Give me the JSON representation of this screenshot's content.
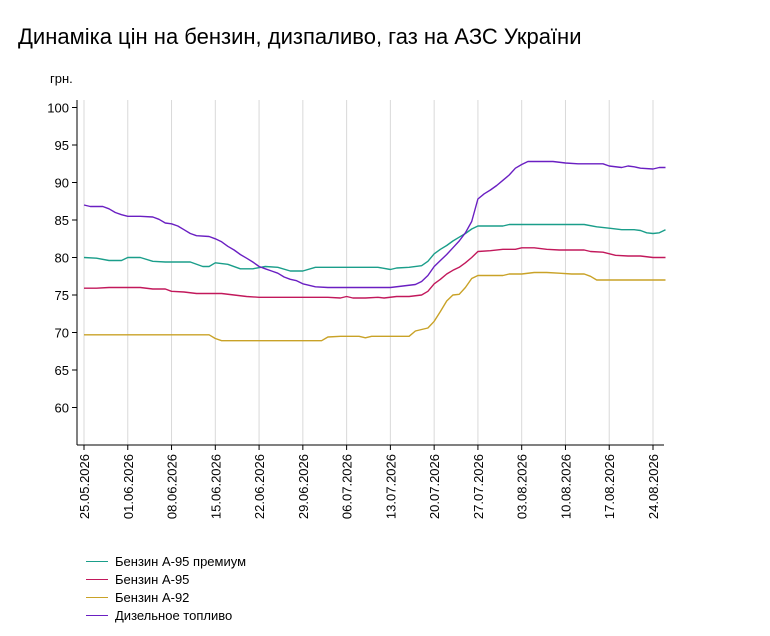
{
  "title": "Динаміка цін на бензин, дизпаливо, газ на АЗС України",
  "chart_data": {
    "type": "line",
    "ylabel": "грн.",
    "ylim": [
      55,
      100
    ],
    "yticks": [
      60,
      65,
      70,
      75,
      80,
      85,
      90,
      95,
      100
    ],
    "x_start": "25.05.2026",
    "x_end": "26.08.2026",
    "x_tick_labels": [
      "25.05.2026",
      "01.06.2026",
      "08.06.2026",
      "15.06.2026",
      "22.06.2026",
      "29.06.2026",
      "06.07.2026",
      "13.07.2026",
      "20.07.2026",
      "27.07.2026",
      "03.08.2026",
      "10.08.2026",
      "17.08.2026",
      "24.08.2026"
    ],
    "grid": {
      "vertical": true,
      "horizontal": false
    },
    "legend_position": "bottom-left",
    "series": [
      {
        "name": "Бензин А-95 премиум",
        "color": "#1a9e8a",
        "points": [
          [
            "25.05.2026",
            80.0
          ],
          [
            "27.05.2026",
            79.9
          ],
          [
            "29.05.2026",
            79.6
          ],
          [
            "31.05.2026",
            79.6
          ],
          [
            "01.06.2026",
            80.0
          ],
          [
            "03.06.2026",
            80.0
          ],
          [
            "05.06.2026",
            79.5
          ],
          [
            "07.06.2026",
            79.4
          ],
          [
            "09.06.2026",
            79.4
          ],
          [
            "11.06.2026",
            79.4
          ],
          [
            "13.06.2026",
            78.8
          ],
          [
            "14.06.2026",
            78.8
          ],
          [
            "15.06.2026",
            79.3
          ],
          [
            "17.06.2026",
            79.1
          ],
          [
            "19.06.2026",
            78.5
          ],
          [
            "21.06.2026",
            78.5
          ],
          [
            "23.06.2026",
            78.8
          ],
          [
            "25.06.2026",
            78.7
          ],
          [
            "27.06.2026",
            78.2
          ],
          [
            "29.06.2026",
            78.2
          ],
          [
            "01.07.2026",
            78.7
          ],
          [
            "03.07.2026",
            78.7
          ],
          [
            "05.07.2026",
            78.7
          ],
          [
            "07.07.2026",
            78.7
          ],
          [
            "09.07.2026",
            78.7
          ],
          [
            "11.07.2026",
            78.7
          ],
          [
            "13.07.2026",
            78.4
          ],
          [
            "14.07.2026",
            78.6
          ],
          [
            "16.07.2026",
            78.7
          ],
          [
            "18.07.2026",
            78.9
          ],
          [
            "19.07.2026",
            79.5
          ],
          [
            "20.07.2026",
            80.5
          ],
          [
            "21.07.2026",
            81.1
          ],
          [
            "22.07.2026",
            81.6
          ],
          [
            "23.07.2026",
            82.2
          ],
          [
            "24.07.2026",
            82.7
          ],
          [
            "25.07.2026",
            83.2
          ],
          [
            "26.07.2026",
            83.8
          ],
          [
            "27.07.2026",
            84.2
          ],
          [
            "29.07.2026",
            84.2
          ],
          [
            "31.07.2026",
            84.2
          ],
          [
            "01.08.2026",
            84.4
          ],
          [
            "03.08.2026",
            84.4
          ],
          [
            "05.08.2026",
            84.4
          ],
          [
            "07.08.2026",
            84.4
          ],
          [
            "09.08.2026",
            84.4
          ],
          [
            "11.08.2026",
            84.4
          ],
          [
            "13.08.2026",
            84.4
          ],
          [
            "15.08.2026",
            84.1
          ],
          [
            "17.08.2026",
            83.9
          ],
          [
            "19.08.2026",
            83.7
          ],
          [
            "21.08.2026",
            83.7
          ],
          [
            "22.08.2026",
            83.6
          ],
          [
            "23.08.2026",
            83.3
          ],
          [
            "24.08.2026",
            83.2
          ],
          [
            "25.08.2026",
            83.3
          ],
          [
            "26.08.2026",
            83.7
          ]
        ]
      },
      {
        "name": "Бензин А-95",
        "color": "#c2185b",
        "points": [
          [
            "25.05.2026",
            75.9
          ],
          [
            "27.05.2026",
            75.9
          ],
          [
            "29.05.2026",
            76.0
          ],
          [
            "31.05.2026",
            76.0
          ],
          [
            "03.06.2026",
            76.0
          ],
          [
            "05.06.2026",
            75.8
          ],
          [
            "07.06.2026",
            75.8
          ],
          [
            "08.06.2026",
            75.5
          ],
          [
            "10.06.2026",
            75.4
          ],
          [
            "12.06.2026",
            75.2
          ],
          [
            "14.06.2026",
            75.2
          ],
          [
            "16.06.2026",
            75.2
          ],
          [
            "18.06.2026",
            75.0
          ],
          [
            "20.06.2026",
            74.8
          ],
          [
            "22.06.2026",
            74.7
          ],
          [
            "24.06.2026",
            74.7
          ],
          [
            "27.06.2026",
            74.7
          ],
          [
            "30.06.2026",
            74.7
          ],
          [
            "03.07.2026",
            74.7
          ],
          [
            "05.07.2026",
            74.6
          ],
          [
            "06.07.2026",
            74.8
          ],
          [
            "07.07.2026",
            74.6
          ],
          [
            "09.07.2026",
            74.6
          ],
          [
            "11.07.2026",
            74.7
          ],
          [
            "12.07.2026",
            74.6
          ],
          [
            "14.07.2026",
            74.8
          ],
          [
            "16.07.2026",
            74.8
          ],
          [
            "18.07.2026",
            75.0
          ],
          [
            "19.07.2026",
            75.5
          ],
          [
            "20.07.2026",
            76.5
          ],
          [
            "21.07.2026",
            77.1
          ],
          [
            "22.07.2026",
            77.8
          ],
          [
            "23.07.2026",
            78.3
          ],
          [
            "24.07.2026",
            78.7
          ],
          [
            "25.07.2026",
            79.3
          ],
          [
            "26.07.2026",
            80.0
          ],
          [
            "27.07.2026",
            80.8
          ],
          [
            "29.07.2026",
            80.9
          ],
          [
            "31.07.2026",
            81.1
          ],
          [
            "02.08.2026",
            81.1
          ],
          [
            "03.08.2026",
            81.3
          ],
          [
            "05.08.2026",
            81.3
          ],
          [
            "07.08.2026",
            81.1
          ],
          [
            "09.08.2026",
            81.0
          ],
          [
            "11.08.2026",
            81.0
          ],
          [
            "13.08.2026",
            81.0
          ],
          [
            "14.08.2026",
            80.8
          ],
          [
            "16.08.2026",
            80.7
          ],
          [
            "18.08.2026",
            80.3
          ],
          [
            "20.08.2026",
            80.2
          ],
          [
            "22.08.2026",
            80.2
          ],
          [
            "24.08.2026",
            80.0
          ],
          [
            "26.08.2026",
            80.0
          ]
        ]
      },
      {
        "name": "Бензин А-92",
        "color": "#c9a227",
        "points": [
          [
            "25.05.2026",
            69.7
          ],
          [
            "28.05.2026",
            69.7
          ],
          [
            "01.06.2026",
            69.7
          ],
          [
            "05.06.2026",
            69.7
          ],
          [
            "09.06.2026",
            69.7
          ],
          [
            "12.06.2026",
            69.7
          ],
          [
            "14.06.2026",
            69.7
          ],
          [
            "15.06.2026",
            69.2
          ],
          [
            "16.06.2026",
            68.9
          ],
          [
            "19.06.2026",
            68.9
          ],
          [
            "22.06.2026",
            68.9
          ],
          [
            "26.06.2026",
            68.9
          ],
          [
            "30.06.2026",
            68.9
          ],
          [
            "02.07.2026",
            68.9
          ],
          [
            "03.07.2026",
            69.4
          ],
          [
            "05.07.2026",
            69.5
          ],
          [
            "07.07.2026",
            69.5
          ],
          [
            "08.07.2026",
            69.5
          ],
          [
            "09.07.2026",
            69.3
          ],
          [
            "10.07.2026",
            69.5
          ],
          [
            "12.07.2026",
            69.5
          ],
          [
            "14.07.2026",
            69.5
          ],
          [
            "16.07.2026",
            69.5
          ],
          [
            "17.07.2026",
            70.2
          ],
          [
            "18.07.2026",
            70.4
          ],
          [
            "19.07.2026",
            70.6
          ],
          [
            "20.07.2026",
            71.5
          ],
          [
            "21.07.2026",
            72.8
          ],
          [
            "22.07.2026",
            74.2
          ],
          [
            "23.07.2026",
            75.0
          ],
          [
            "24.07.2026",
            75.1
          ],
          [
            "25.07.2026",
            76.0
          ],
          [
            "26.07.2026",
            77.2
          ],
          [
            "27.07.2026",
            77.6
          ],
          [
            "29.07.2026",
            77.6
          ],
          [
            "31.07.2026",
            77.6
          ],
          [
            "01.08.2026",
            77.8
          ],
          [
            "03.08.2026",
            77.8
          ],
          [
            "05.08.2026",
            78.0
          ],
          [
            "07.08.2026",
            78.0
          ],
          [
            "09.08.2026",
            77.9
          ],
          [
            "11.08.2026",
            77.8
          ],
          [
            "13.08.2026",
            77.8
          ],
          [
            "14.08.2026",
            77.5
          ],
          [
            "15.08.2026",
            77.0
          ],
          [
            "17.08.2026",
            77.0
          ],
          [
            "20.08.2026",
            77.0
          ],
          [
            "23.08.2026",
            77.0
          ],
          [
            "26.08.2026",
            77.0
          ]
        ]
      },
      {
        "name": "Дизельное топливо",
        "color": "#6a1fc2",
        "points": [
          [
            "25.05.2026",
            87.0
          ],
          [
            "26.05.2026",
            86.8
          ],
          [
            "28.05.2026",
            86.8
          ],
          [
            "29.05.2026",
            86.5
          ],
          [
            "30.05.2026",
            86.0
          ],
          [
            "31.05.2026",
            85.7
          ],
          [
            "01.06.2026",
            85.5
          ],
          [
            "03.06.2026",
            85.5
          ],
          [
            "05.06.2026",
            85.4
          ],
          [
            "06.06.2026",
            85.1
          ],
          [
            "07.06.2026",
            84.6
          ],
          [
            "08.06.2026",
            84.5
          ],
          [
            "09.06.2026",
            84.2
          ],
          [
            "10.06.2026",
            83.7
          ],
          [
            "11.06.2026",
            83.2
          ],
          [
            "12.06.2026",
            82.9
          ],
          [
            "14.06.2026",
            82.8
          ],
          [
            "15.06.2026",
            82.5
          ],
          [
            "16.06.2026",
            82.1
          ],
          [
            "17.06.2026",
            81.5
          ],
          [
            "18.06.2026",
            81.0
          ],
          [
            "19.06.2026",
            80.4
          ],
          [
            "20.06.2026",
            79.9
          ],
          [
            "21.06.2026",
            79.4
          ],
          [
            "22.06.2026",
            78.8
          ],
          [
            "23.06.2026",
            78.5
          ],
          [
            "24.06.2026",
            78.2
          ],
          [
            "25.06.2026",
            77.9
          ],
          [
            "26.06.2026",
            77.4
          ],
          [
            "27.06.2026",
            77.1
          ],
          [
            "28.06.2026",
            76.9
          ],
          [
            "29.06.2026",
            76.5
          ],
          [
            "30.06.2026",
            76.3
          ],
          [
            "01.07.2026",
            76.1
          ],
          [
            "03.07.2026",
            76.0
          ],
          [
            "05.07.2026",
            76.0
          ],
          [
            "07.07.2026",
            76.0
          ],
          [
            "09.07.2026",
            76.0
          ],
          [
            "11.07.2026",
            76.0
          ],
          [
            "13.07.2026",
            76.0
          ],
          [
            "15.07.2026",
            76.2
          ],
          [
            "17.07.2026",
            76.4
          ],
          [
            "18.07.2026",
            76.8
          ],
          [
            "19.07.2026",
            77.6
          ],
          [
            "20.07.2026",
            78.8
          ],
          [
            "21.07.2026",
            79.6
          ],
          [
            "22.07.2026",
            80.4
          ],
          [
            "23.07.2026",
            81.3
          ],
          [
            "24.07.2026",
            82.2
          ],
          [
            "25.07.2026",
            83.3
          ],
          [
            "26.07.2026",
            84.8
          ],
          [
            "27.07.2026",
            87.8
          ],
          [
            "28.07.2026",
            88.5
          ],
          [
            "29.07.2026",
            89.0
          ],
          [
            "30.07.2026",
            89.6
          ],
          [
            "31.07.2026",
            90.3
          ],
          [
            "01.08.2026",
            91.0
          ],
          [
            "02.08.2026",
            91.9
          ],
          [
            "03.08.2026",
            92.4
          ],
          [
            "04.08.2026",
            92.8
          ],
          [
            "06.08.2026",
            92.8
          ],
          [
            "08.08.2026",
            92.8
          ],
          [
            "10.08.2026",
            92.6
          ],
          [
            "12.08.2026",
            92.5
          ],
          [
            "14.08.2026",
            92.5
          ],
          [
            "16.08.2026",
            92.5
          ],
          [
            "17.08.2026",
            92.2
          ],
          [
            "19.08.2026",
            92.0
          ],
          [
            "20.08.2026",
            92.2
          ],
          [
            "21.08.2026",
            92.1
          ],
          [
            "22.08.2026",
            91.9
          ],
          [
            "24.08.2026",
            91.8
          ],
          [
            "25.08.2026",
            92.0
          ],
          [
            "26.08.2026",
            92.0
          ]
        ]
      }
    ]
  }
}
